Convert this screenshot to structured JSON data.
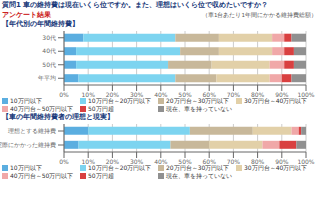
{
  "title": "質問1  車の維持費は現在いくら位ですか。また、理想はいくら位で収めたいですか？",
  "subtitle": "アンケート結果",
  "annotations": [
    "（車1台あたり1年間にかかる維持費総額）"
  ],
  "chart_data": [
    {
      "type": "bar",
      "title": "【年代別の年間維持費】",
      "orientation": "horizontal",
      "stacked": true,
      "grid": true,
      "legend": "bottom",
      "categories": [
        "30代",
        "40代",
        "50代",
        "年平均"
      ],
      "series": [
        {
          "name": "10万円以下",
          "color": "#5baee0",
          "values": [
            8,
            5,
            5,
            6
          ]
        },
        {
          "name": "10万円台～20万円以下",
          "color": "#7dd4f0",
          "values": [
            38,
            43,
            38,
            40
          ]
        },
        {
          "name": "20万円台～30万円以下",
          "color": "#c8b89a",
          "values": [
            18,
            16,
            18,
            17
          ]
        },
        {
          "name": "30万円台～40万円以下",
          "color": "#e2d0a8",
          "values": [
            22,
            22,
            24,
            22
          ]
        },
        {
          "name": "40万円台～50万円以下",
          "color": "#f0a8a8",
          "values": [
            5,
            5,
            6,
            5
          ]
        },
        {
          "name": "50万円超",
          "color": "#d94040",
          "values": [
            3,
            4,
            4,
            4
          ]
        },
        {
          "name": "現在、車を持っていない",
          "color": "#909090",
          "values": [
            6,
            5,
            5,
            6
          ]
        }
      ],
      "xlim": [
        0,
        100
      ],
      "xticks": [
        {
          "value": 0,
          "label": "0%"
        },
        {
          "value": 10,
          "label": "10%"
        },
        {
          "value": 20,
          "label": "20%"
        },
        {
          "value": 30,
          "label": "30%"
        },
        {
          "value": 40,
          "label": "40%"
        },
        {
          "value": 50,
          "label": "50%"
        },
        {
          "value": 60,
          "label": "60%"
        },
        {
          "value": 70,
          "label": "70%"
        },
        {
          "value": 80,
          "label": "80%"
        },
        {
          "value": 90,
          "label": "90%"
        },
        {
          "value": 100,
          "label": "100%"
        }
      ]
    },
    {
      "type": "bar",
      "title": "【車の年間維持費者の理想と現実】",
      "orientation": "horizontal",
      "stacked": true,
      "grid": true,
      "legend": "bottom",
      "categories": [
        "理想とする維持費",
        "実際にかかった維持費"
      ],
      "series": [
        {
          "name": "10万円以下",
          "color": "#5baee0",
          "values": [
            10,
            6
          ]
        },
        {
          "name": "10万円台～20万円以下",
          "color": "#7dd4f0",
          "values": [
            42,
            38
          ]
        },
        {
          "name": "20万円台～30万円以下",
          "color": "#c8b89a",
          "values": [
            26,
            16
          ]
        },
        {
          "name": "30万円台～40万円以下",
          "color": "#e2d0a8",
          "values": [
            16,
            22
          ]
        },
        {
          "name": "40万円台～50万円以下",
          "color": "#f0a8a8",
          "values": [
            3,
            7
          ]
        },
        {
          "name": "50万円超",
          "color": "#d94040",
          "values": [
            1,
            7
          ]
        },
        {
          "name": "現在、車を持っていない",
          "color": "#909090",
          "values": [
            2,
            4
          ]
        }
      ],
      "xlim": [
        0,
        100
      ],
      "xticks": [
        {
          "value": 0,
          "label": "0%"
        },
        {
          "value": 10,
          "label": "10%"
        },
        {
          "value": 20,
          "label": "20%"
        },
        {
          "value": 30,
          "label": "30%"
        },
        {
          "value": 40,
          "label": "40%"
        },
        {
          "value": 50,
          "label": "50%"
        },
        {
          "value": 60,
          "label": "60%"
        },
        {
          "value": 70,
          "label": "70%"
        },
        {
          "value": 80,
          "label": "80%"
        },
        {
          "value": 90,
          "label": "90%"
        },
        {
          "value": 100,
          "label": "100%"
        }
      ]
    }
  ]
}
